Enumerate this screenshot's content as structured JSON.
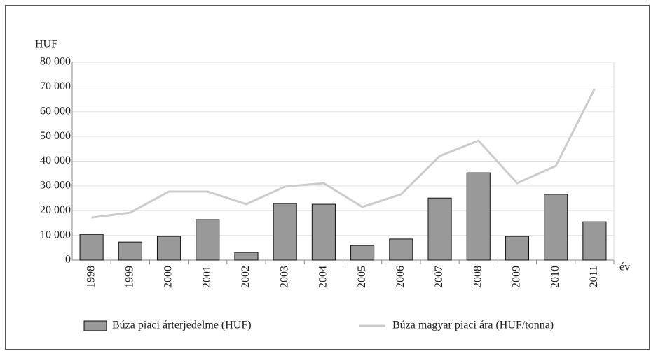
{
  "chart_data": {
    "type": "bar-line",
    "y_axis_label": "HUF",
    "x_axis_label": "év",
    "categories": [
      "1998",
      "1999",
      "2000",
      "2001",
      "2002",
      "2003",
      "2004",
      "2005",
      "2006",
      "2007",
      "2008",
      "2009",
      "2010",
      "2011"
    ],
    "series": [
      {
        "name": "Búza piaci árterjedelme (HUF)",
        "type": "bar",
        "color": "#999999",
        "values": [
          10400,
          7300,
          9600,
          16400,
          3100,
          22900,
          22600,
          5900,
          8500,
          25100,
          35300,
          9600,
          26600,
          15500
        ]
      },
      {
        "name": "Búza magyar piaci ára (HUF/tonna)",
        "type": "line",
        "color": "#cccccc",
        "values": [
          17200,
          19200,
          27700,
          27700,
          22600,
          29700,
          31100,
          21500,
          26600,
          42100,
          48300,
          31100,
          38100,
          69200
        ]
      }
    ],
    "ylim": [
      0,
      80000
    ],
    "yticks": [
      0,
      {
        "value": 10000,
        "label": "10 000"
      },
      {
        "value": 20000,
        "label": "20 000"
      },
      {
        "value": 30000,
        "label": "30 000"
      },
      {
        "value": 40000,
        "label": "40 000"
      },
      {
        "value": 50000,
        "label": "50 000"
      },
      {
        "value": 60000,
        "label": "60 000"
      },
      {
        "value": 70000,
        "label": "70 000"
      },
      {
        "value": 80000,
        "label": "80 000"
      }
    ],
    "grid": true,
    "legend": "bottom"
  }
}
